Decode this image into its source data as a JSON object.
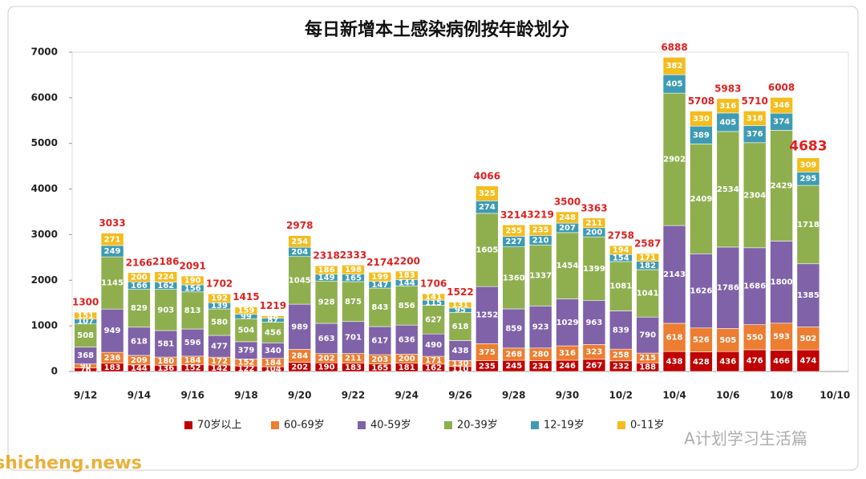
{
  "chart_data": {
    "type": "stacked_bar",
    "title": "每日新增本土感染病例按年龄划分",
    "categories": [
      "9/12",
      null,
      "9/14",
      null,
      "9/16",
      null,
      "9/18",
      null,
      "9/20",
      null,
      "9/22",
      null,
      "9/24",
      null,
      "9/26",
      null,
      "9/28",
      null,
      "9/30",
      null,
      "10/2",
      null,
      "10/4",
      null,
      "10/6",
      null,
      "10/8",
      null,
      "10/10"
    ],
    "series": [
      {
        "name": "70岁以上",
        "color": "#c00000",
        "values": [
          76,
          183,
          144,
          136,
          152,
          142,
          122,
          104,
          202,
          190,
          183,
          165,
          181,
          162,
          110,
          235,
          245,
          234,
          246,
          267,
          232,
          188,
          438,
          428,
          436,
          476,
          466,
          474,
          null
        ]
      },
      {
        "name": "60-69岁",
        "color": "#ed7d31",
        "values": [
          90,
          236,
          209,
          180,
          184,
          172,
          152,
          184,
          284,
          202,
          211,
          203,
          200,
          171,
          130,
          375,
          268,
          280,
          316,
          323,
          258,
          215,
          618,
          526,
          505,
          550,
          593,
          502,
          null
        ]
      },
      {
        "name": "40-59岁",
        "color": "#7f62a8",
        "values": [
          368,
          949,
          618,
          581,
          596,
          477,
          379,
          340,
          989,
          663,
          701,
          617,
          636,
          490,
          438,
          1252,
          859,
          923,
          1029,
          963,
          839,
          790,
          2143,
          1626,
          1786,
          1686,
          1800,
          1385,
          null
        ]
      },
      {
        "name": "20-39岁",
        "color": "#8faf4f",
        "values": [
          508,
          1145,
          829,
          903,
          813,
          580,
          504,
          456,
          1045,
          928,
          875,
          843,
          856,
          627,
          618,
          1605,
          1360,
          1337,
          1454,
          1399,
          1081,
          1041,
          2902,
          2409,
          2534,
          2304,
          2429,
          1718,
          null
        ]
      },
      {
        "name": "12-19岁",
        "color": "#3e9bb3",
        "values": [
          107,
          249,
          166,
          162,
          156,
          139,
          99,
          87,
          204,
          149,
          165,
          147,
          144,
          115,
          95,
          274,
          227,
          210,
          207,
          200,
          154,
          182,
          405,
          389,
          405,
          376,
          374,
          295,
          null
        ]
      },
      {
        "name": "0-11岁",
        "color": "#f3bd1d",
        "values": [
          151,
          271,
          200,
          224,
          190,
          192,
          159,
          48,
          254,
          186,
          198,
          199,
          183,
          141,
          131,
          325,
          255,
          235,
          248,
          211,
          194,
          171,
          382,
          330,
          316,
          318,
          346,
          309,
          null
        ]
      }
    ],
    "totals": [
      1300,
      3033,
      2166,
      2186,
      2091,
      1702,
      1415,
      1219,
      2978,
      2318,
      2333,
      2174,
      2200,
      1706,
      1522,
      4066,
      3214,
      3219,
      3500,
      3363,
      2758,
      2587,
      6888,
      5708,
      5983,
      5710,
      6008,
      4683,
      null
    ],
    "ylim": [
      0,
      7000
    ],
    "yticks": [
      0,
      1000,
      2000,
      3000,
      4000,
      5000,
      6000,
      7000
    ],
    "grid": false,
    "legend": "bottom",
    "watermarks": [
      "A计划学习生活篇",
      "shicheng.news"
    ]
  }
}
